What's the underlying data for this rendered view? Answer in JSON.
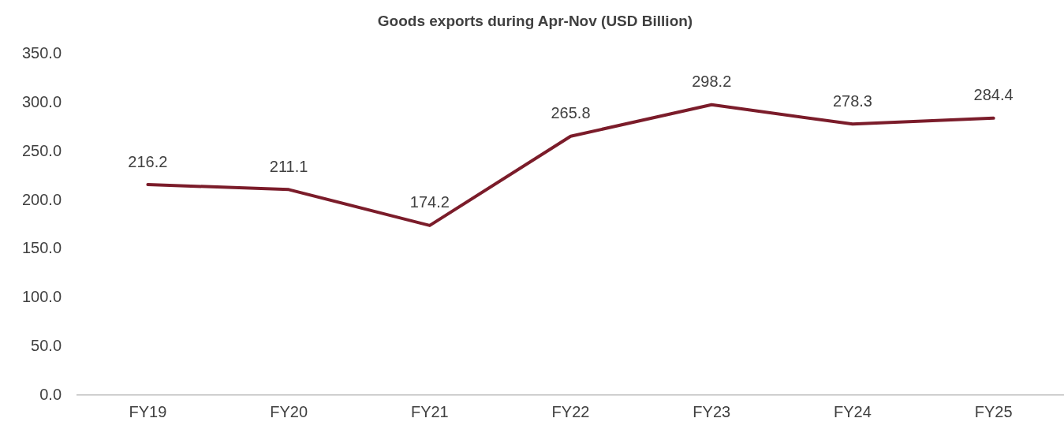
{
  "chart_data": {
    "type": "line",
    "title": "Goods exports during Apr-Nov (USD Billion)",
    "categories": [
      "FY19",
      "FY20",
      "FY21",
      "FY22",
      "FY23",
      "FY24",
      "FY25"
    ],
    "series": [
      {
        "color": "#7b1c2a",
        "values": [
          216.2,
          211.1,
          174.2,
          265.8,
          298.2,
          278.3,
          284.4
        ]
      }
    ],
    "ylim": [
      0,
      350
    ],
    "yticks": [
      {
        "value": 0,
        "label": "0.0"
      },
      {
        "value": 50,
        "label": "50.0"
      },
      {
        "value": 100,
        "label": "100.0"
      },
      {
        "value": 150,
        "label": "150.0"
      },
      {
        "value": 200,
        "label": "200.0"
      },
      {
        "value": 250,
        "label": "250.0"
      },
      {
        "value": 300,
        "label": "300.0"
      },
      {
        "value": 350,
        "label": "350.0"
      }
    ],
    "grid": false,
    "legend": false,
    "marker": "none",
    "line_style": "solid",
    "data_labels": true
  }
}
